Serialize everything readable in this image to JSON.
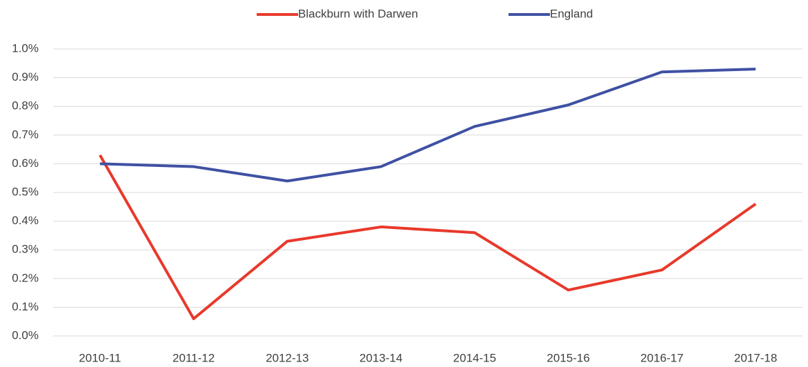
{
  "chart_data": {
    "type": "line",
    "categories": [
      "2010-11",
      "2011-12",
      "2012-13",
      "2013-14",
      "2014-15",
      "2015-16",
      "2016-17",
      "2017-18"
    ],
    "series": [
      {
        "name": "Blackburn with Darwen",
        "color": "#e8392b",
        "values": [
          0.63,
          0.06,
          0.33,
          0.38,
          0.36,
          0.16,
          0.23,
          0.46
        ]
      },
      {
        "name": "England",
        "color": "#3f51a3",
        "values": [
          0.6,
          0.59,
          0.54,
          0.59,
          0.73,
          0.805,
          0.92,
          0.93
        ]
      }
    ],
    "ylim": [
      0,
      1
    ],
    "yticks": [
      {
        "value": 0,
        "label": "0.0%"
      },
      {
        "value": 0.1,
        "label": "0.1%"
      },
      {
        "value": 0.2,
        "label": "0.2%"
      },
      {
        "value": 0.3,
        "label": "0.3%"
      },
      {
        "value": 0.4,
        "label": "0.4%"
      },
      {
        "value": 0.5,
        "label": "0.5%"
      },
      {
        "value": 0.6,
        "label": "0.6%"
      },
      {
        "value": 0.7,
        "label": "0.7%"
      },
      {
        "value": 0.8,
        "label": "0.8%"
      },
      {
        "value": 0.9,
        "label": "0.9%"
      },
      {
        "value": 1,
        "label": "1.0%"
      }
    ],
    "grid": true,
    "legend": "top"
  }
}
